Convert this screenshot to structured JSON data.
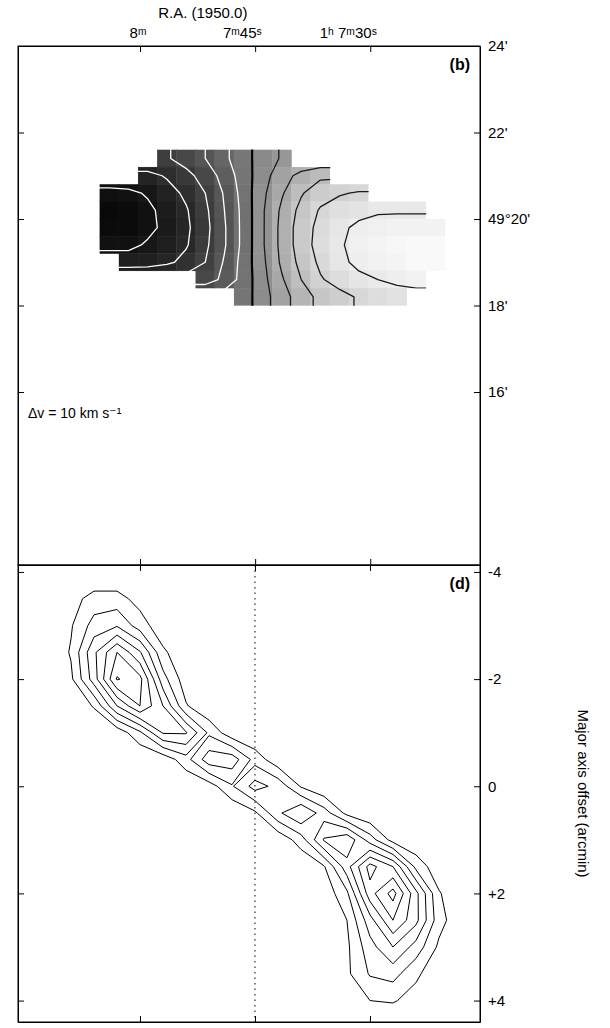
{
  "chart_data": [
    {
      "type": "heatmap",
      "x_label": "R.A. (1950.0)",
      "label": "(b)",
      "annotation": "Δv = 10 km s⁻¹",
      "x": [
        484,
        481.5,
        479,
        476.5,
        474,
        471.5,
        469,
        466.5,
        464,
        461.5,
        459,
        456.5,
        454,
        451.5,
        449,
        446.5,
        444,
        441.5
      ],
      "y": [
        21.4,
        21.0,
        20.6,
        20.2,
        19.8,
        19.4,
        19.0,
        18.6,
        18.2
      ],
      "cells": [
        [
          null,
          null,
          null,
          -31,
          -26,
          -20,
          -12,
          -4,
          5,
          11,
          null,
          null,
          null,
          null,
          null,
          null,
          null,
          null
        ],
        [
          null,
          null,
          -43,
          -39,
          -33,
          -26,
          -16,
          -5,
          6,
          16,
          23,
          28,
          null,
          null,
          null,
          null,
          null,
          null
        ],
        [
          -53,
          -52,
          -49,
          -44,
          -38,
          -30,
          -19,
          -6,
          8,
          19,
          29,
          36,
          39,
          41,
          null,
          null,
          null,
          null
        ],
        [
          -56,
          -55,
          -52,
          -47,
          -41,
          -32,
          -20,
          -7,
          9,
          22,
          33,
          41,
          45,
          47,
          49,
          49,
          49,
          null
        ],
        [
          -55,
          -55,
          -52,
          -48,
          -42,
          -33,
          -21,
          -7,
          9,
          23,
          35,
          43,
          48,
          52,
          53,
          54,
          54,
          54
        ],
        [
          -52,
          -52,
          -49,
          -46,
          -41,
          -32,
          -21,
          -7,
          9,
          23,
          35,
          44,
          49,
          53,
          55,
          56,
          57,
          57
        ],
        [
          null,
          -46,
          -45,
          -42,
          -37,
          -30,
          -19,
          -6,
          8,
          22,
          33,
          42,
          48,
          52,
          54,
          55,
          57,
          57
        ],
        [
          null,
          null,
          null,
          null,
          null,
          -26,
          -17,
          -6,
          7,
          19,
          30,
          39,
          44,
          48,
          50,
          52,
          54,
          null
        ],
        [
          null,
          null,
          null,
          null,
          null,
          null,
          null,
          -5,
          6,
          16,
          25,
          33,
          37,
          41,
          44,
          46,
          null,
          null
        ]
      ],
      "levels": [
        -50,
        -40,
        -30,
        -20,
        -10,
        0,
        10,
        20,
        30,
        40,
        50
      ],
      "value_range": [
        -60,
        60
      ],
      "xlim": [
        495.9,
        435.7
      ],
      "xticks": [
        {
          "value": 480,
          "label": "8ᵐ"
        },
        {
          "value": 465,
          "label": "7ᵐ45ˢ"
        },
        {
          "value": 450,
          "label": "1ʰ 7ᵐ30ˢ"
        }
      ],
      "ylim": [
        12,
        24
      ],
      "yticks": [
        {
          "value": 24,
          "label": "24'"
        },
        {
          "value": 22,
          "label": "22'"
        },
        {
          "value": 20,
          "label": "49°20'"
        },
        {
          "value": 18,
          "label": "18'"
        },
        {
          "value": 16,
          "label": "16'"
        }
      ]
    },
    {
      "type": "contour",
      "label": "(d)",
      "y_label": "Major axis offset (arcmin)",
      "x": [
        -180,
        -160,
        -140,
        -120,
        -100,
        -80,
        -60,
        -40,
        -20,
        0,
        20,
        40,
        60,
        80,
        100,
        120,
        140,
        160,
        180
      ],
      "y": [
        -4,
        -3.5,
        -3,
        -2.5,
        -2,
        -1.5,
        -1,
        -0.5,
        0,
        0.5,
        1,
        1.5,
        2,
        2.5,
        3,
        3.5,
        4
      ],
      "cells": [
        [
          0,
          0,
          0,
          0,
          0,
          0,
          0,
          0,
          0,
          0,
          0,
          0,
          0,
          0,
          0,
          0,
          0,
          0,
          0
        ],
        [
          0.1,
          0.6,
          1.4,
          1.4,
          0.6,
          0.1,
          0,
          0,
          0,
          0,
          0,
          0,
          0,
          0,
          0,
          0,
          0,
          0,
          0
        ],
        [
          0.1,
          0.9,
          2.4,
          2.9,
          1.5,
          0.3,
          0,
          0,
          0,
          0,
          0,
          0,
          0,
          0,
          0,
          0,
          0,
          0,
          0
        ],
        [
          0.1,
          1.1,
          3.8,
          6.0,
          4.1,
          1.2,
          0.2,
          0,
          0,
          0,
          0,
          0,
          0,
          0,
          0,
          0,
          0,
          0,
          0
        ],
        [
          0.1,
          0.8,
          3.5,
          7.1,
          6.3,
          2.4,
          0.4,
          0,
          0,
          0,
          0,
          0,
          0,
          0,
          0,
          0,
          0,
          0,
          0
        ],
        [
          0,
          0.1,
          1.1,
          4.0,
          6.0,
          4.0,
          1.1,
          0.1,
          0,
          0,
          0,
          0,
          0,
          0,
          0,
          0,
          0,
          0,
          0
        ],
        [
          0,
          0,
          0,
          0.3,
          1.8,
          4.1,
          4.1,
          1.8,
          0.3,
          0,
          0,
          0,
          0,
          0,
          0,
          0,
          0,
          0,
          0
        ],
        [
          0,
          0,
          0,
          0,
          0,
          0.3,
          1.6,
          3.6,
          3.6,
          1.6,
          0.3,
          0,
          0,
          0,
          0,
          0,
          0,
          0,
          0
        ],
        [
          0,
          0,
          0,
          0,
          0,
          0,
          0.1,
          0.5,
          1.9,
          3.4,
          2.7,
          0.9,
          0.1,
          0,
          0,
          0,
          0,
          0,
          0
        ],
        [
          0,
          0,
          0,
          0,
          0,
          0,
          0,
          0,
          0.1,
          0.8,
          2.8,
          4.0,
          2.5,
          0.7,
          0.1,
          0,
          0,
          0,
          0
        ],
        [
          0,
          0,
          0,
          0,
          0,
          0,
          0,
          0,
          0,
          0,
          0.2,
          1.5,
          4.1,
          4.8,
          2.5,
          0.6,
          0.1,
          0,
          0
        ],
        [
          0,
          0,
          0,
          0,
          0,
          0,
          0,
          0,
          0,
          0,
          0,
          0.1,
          0.9,
          3.6,
          6.4,
          5.0,
          1.7,
          0.3,
          0
        ],
        [
          0,
          0,
          0,
          0,
          0,
          0,
          0,
          0,
          0,
          0,
          0,
          0,
          0.3,
          1.8,
          5.6,
          7.4,
          4.3,
          1.1,
          0.1
        ],
        [
          0,
          0,
          0,
          0,
          0,
          0,
          0,
          0,
          0,
          0,
          0,
          0,
          0.1,
          1.0,
          3.6,
          6.0,
          4.3,
          1.4,
          0.2
        ],
        [
          0,
          0,
          0,
          0,
          0,
          0,
          0,
          0,
          0,
          0,
          0,
          0,
          0.1,
          0.8,
          2.6,
          4.0,
          2.6,
          0.8,
          0.1
        ],
        [
          0,
          0,
          0,
          0,
          0,
          0,
          0,
          0,
          0,
          0,
          0,
          0,
          0.1,
          0.8,
          2.1,
          2.4,
          1.2,
          0.3,
          0
        ],
        [
          0,
          0,
          0,
          0,
          0,
          0,
          0,
          0,
          0,
          0,
          0,
          0,
          0,
          0.4,
          1.0,
          1.1,
          0.6,
          0.1,
          0
        ]
      ],
      "levels": [
        1,
        2,
        3,
        4,
        5,
        6,
        7
      ],
      "xlim": [
        -206.1,
        195.7
      ],
      "xticks": [
        -100,
        0,
        100
      ],
      "ylim": [
        4.4,
        -4.13
      ],
      "yticks": [
        -4,
        -2,
        0,
        {
          "value": 2,
          "label": "+2"
        },
        {
          "value": 4,
          "label": "+4"
        }
      ],
      "tick_labels": "y",
      "reference_line": {
        "x": 0,
        "line_style": "dotted"
      }
    }
  ]
}
